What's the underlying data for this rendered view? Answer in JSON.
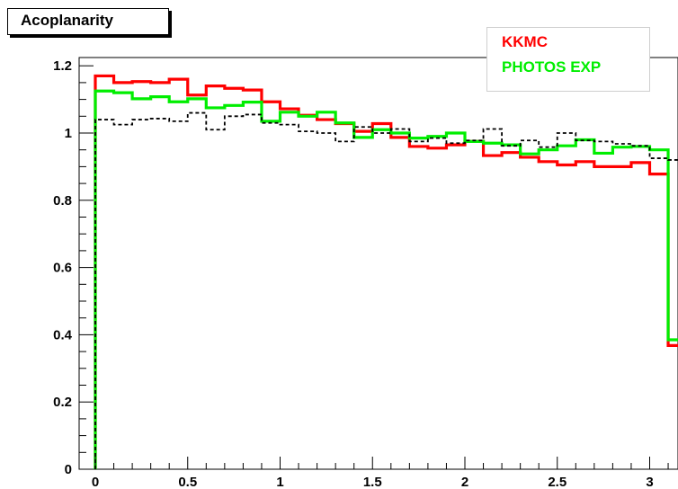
{
  "chart_data": {
    "type": "line",
    "title": "Acoplanarity",
    "xlabel": "",
    "ylabel": "",
    "xlim": [
      -0.1,
      3.2
    ],
    "ylim": [
      0,
      1.22
    ],
    "legend_position": "top-right",
    "grid": false,
    "x_ticks": [
      "0",
      "0.5",
      "1",
      "1.5",
      "2",
      "2.5",
      "3"
    ],
    "y_ticks": [
      "0",
      "0.2",
      "0.4",
      "0.6",
      "0.8",
      "1",
      "1.2"
    ],
    "bin_edges": [
      0,
      0.1,
      0.2,
      0.3,
      0.4,
      0.5,
      0.6,
      0.7,
      0.8,
      0.9,
      1.0,
      1.1,
      1.2,
      1.3,
      1.4,
      1.5,
      1.6,
      1.7,
      1.8,
      1.9,
      2.0,
      2.1,
      2.2,
      2.3,
      2.4,
      2.5,
      2.6,
      2.7,
      2.8,
      2.9,
      3.0,
      3.1,
      3.2
    ],
    "series": [
      {
        "name": "KKMC",
        "color": "#ff0000",
        "style": "solid",
        "values": [
          1.17,
          1.15,
          1.153,
          1.15,
          1.16,
          1.113,
          1.14,
          1.133,
          1.128,
          1.093,
          1.072,
          1.053,
          1.04,
          1.028,
          1.005,
          1.028,
          0.987,
          0.96,
          0.955,
          0.965,
          0.975,
          0.933,
          0.942,
          0.928,
          0.915,
          0.905,
          0.915,
          0.9,
          0.9,
          0.912,
          0.878,
          0.368
        ]
      },
      {
        "name": "PHOTOS EXP",
        "color": "#00ee00",
        "style": "solid",
        "values": [
          1.125,
          1.12,
          1.102,
          1.108,
          1.093,
          1.102,
          1.075,
          1.082,
          1.092,
          1.035,
          1.062,
          1.05,
          1.062,
          1.03,
          0.987,
          1.01,
          1.0,
          0.985,
          0.99,
          1.0,
          0.975,
          0.97,
          0.965,
          0.938,
          0.95,
          0.962,
          0.98,
          0.94,
          0.958,
          0.96,
          0.95,
          0.385
        ]
      },
      {
        "name": "",
        "color": "#000000",
        "style": "dashed",
        "values": [
          1.04,
          1.025,
          1.04,
          1.043,
          1.035,
          1.06,
          1.01,
          1.05,
          1.055,
          1.03,
          1.025,
          1.005,
          1.0,
          0.975,
          1.018,
          1.0,
          1.012,
          0.975,
          0.985,
          0.97,
          0.978,
          1.012,
          0.962,
          0.978,
          0.958,
          1.0,
          0.978,
          0.975,
          0.968,
          0.962,
          0.925,
          0.92
        ]
      }
    ]
  }
}
